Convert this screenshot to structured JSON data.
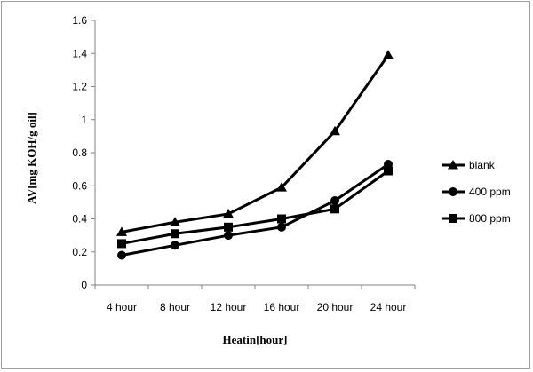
{
  "chart_data": {
    "type": "line",
    "title": "",
    "xlabel": "Heatin[hour]",
    "ylabel": "AV[mg KOH/g oil]",
    "categories": [
      "4 hour",
      "8 hour",
      "12 hour",
      "16 hour",
      "20 hour",
      "24 hour"
    ],
    "ylim": [
      0,
      1.6
    ],
    "yticks": [
      0,
      0.2,
      0.4,
      0.6,
      0.8,
      1,
      1.2,
      1.4,
      1.6
    ],
    "ytick_labels": [
      "0",
      "0.2",
      "0.4",
      "0.6",
      "0.8",
      "1",
      "1.2",
      "1.4",
      "1.6"
    ],
    "grid": false,
    "legend_position": "right",
    "series": [
      {
        "name": "blank",
        "marker": "triangle",
        "values": [
          0.32,
          0.38,
          0.43,
          0.59,
          0.93,
          1.39
        ]
      },
      {
        "name": "400 ppm",
        "marker": "circle",
        "values": [
          0.18,
          0.24,
          0.3,
          0.35,
          0.51,
          0.73
        ]
      },
      {
        "name": "800 ppm",
        "marker": "square",
        "values": [
          0.25,
          0.31,
          0.35,
          0.4,
          0.46,
          0.69
        ]
      }
    ],
    "line_color": "#000000"
  }
}
